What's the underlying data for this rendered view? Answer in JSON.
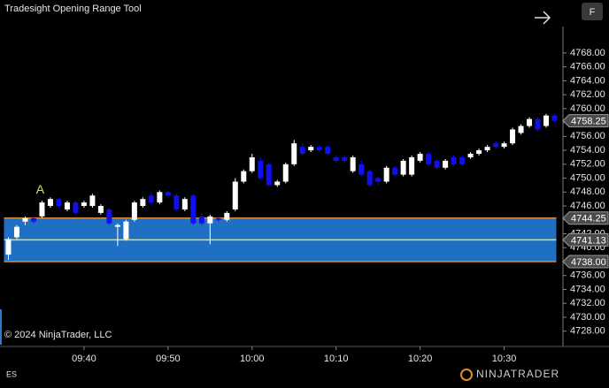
{
  "chart_data": {
    "type": "candlestick",
    "title": "Tradesight Opening Range Tool",
    "copyright": "© 2024 NinjaTrader, LLC",
    "instrument": "ES",
    "brand": "NINJATRADER",
    "button": "F",
    "up_color": "#ffffff",
    "down_color": "#1010ee",
    "x": [
      571,
      572,
      573,
      574,
      575,
      576,
      577,
      578,
      579,
      580,
      581,
      582,
      583,
      584,
      585,
      586,
      587,
      588,
      589,
      590,
      591,
      592,
      593,
      594,
      595,
      596,
      597,
      598,
      599,
      600,
      601,
      602,
      603,
      604,
      605,
      606,
      607,
      608,
      609,
      610,
      611,
      612,
      613,
      614,
      615,
      616,
      617,
      618,
      619,
      620,
      621,
      622,
      623,
      624,
      625,
      626,
      627,
      628,
      629,
      630,
      631,
      632,
      633,
      634,
      635,
      636
    ],
    "open": [
      4739,
      4741.5,
      4743.75,
      4744.25,
      4744.5,
      4746,
      4747,
      4745.5,
      4746.5,
      4746,
      4746,
      4745,
      4745.5,
      4743,
      4741.25,
      4744,
      4746,
      4747.5,
      4746.5,
      4748,
      4747.5,
      4745.5,
      4747.5,
      4744.5,
      4743.5,
      4744.25,
      4744,
      4745.5,
      4749.5,
      4751,
      4752.5,
      4752,
      4749,
      4749.5,
      4752,
      4754.5,
      4754,
      4754.5,
      4754.5,
      4753,
      4753,
      4751,
      4752,
      4751,
      4750,
      4749.5,
      4751.5,
      4750.5,
      4750.5,
      4752.5,
      4753.5,
      4752.5,
      4751.5,
      4753,
      4753,
      4753,
      4753.5,
      4754,
      4755,
      4754.5,
      4755,
      4756.5,
      4757.5,
      4758.5,
      4757.5,
      4759
    ],
    "high": [
      4741.5,
      4743.25,
      4744.5,
      4744.5,
      4746.75,
      4747.25,
      4747.25,
      4746.75,
      4746.75,
      4746.75,
      4747.75,
      4746.25,
      4745.75,
      4743.5,
      4744,
      4746.75,
      4747.25,
      4748,
      4748.25,
      4748.25,
      4747.75,
      4747.25,
      4747.75,
      4745,
      4744.75,
      4744.5,
      4745.25,
      4750,
      4751.25,
      4753.5,
      4753,
      4752.25,
      4749.75,
      4752.25,
      4755.5,
      4755,
      4754.75,
      4754.75,
      4754.75,
      4753.25,
      4753.25,
      4753.25,
      4752.5,
      4751.25,
      4750.25,
      4751.75,
      4751.75,
      4752.75,
      4753.25,
      4753.75,
      4753.75,
      4752.75,
      4752.75,
      4753.25,
      4753.25,
      4753.75,
      4754.25,
      4754.75,
      4755.25,
      4755.25,
      4757.25,
      4757.75,
      4758.75,
      4758.75,
      4759.25,
      4759.25
    ],
    "low": [
      4738.25,
      4741.25,
      4743.25,
      4743.5,
      4744.25,
      4745.75,
      4745.75,
      4745.25,
      4744.75,
      4745.75,
      4745.75,
      4744.75,
      4743.25,
      4740.25,
      4741,
      4743.75,
      4745.75,
      4746.25,
      4746.25,
      4747.25,
      4745.25,
      4745.25,
      4743.25,
      4743.25,
      4740.5,
      4743.75,
      4743.75,
      4745.25,
      4749.25,
      4750.75,
      4749.75,
      4748.75,
      4748.75,
      4749.25,
      4751.75,
      4753.25,
      4753.75,
      4753.75,
      4753.25,
      4752.25,
      4752.25,
      4750.75,
      4750.25,
      4748.75,
      4749,
      4749.25,
      4750.25,
      4750.25,
      4750.25,
      4752.25,
      4751.75,
      4751.25,
      4751.25,
      4751.75,
      4751.75,
      4752.75,
      4753.25,
      4753.75,
      4754.25,
      4754.25,
      4754.75,
      4756.25,
      4757.25,
      4756.75,
      4757.25,
      4758
    ],
    "close": [
      4741.25,
      4743,
      4744.25,
      4743.75,
      4746.5,
      4747,
      4746,
      4746.5,
      4745,
      4746.5,
      4747.5,
      4746,
      4743.5,
      4743.25,
      4743.75,
      4746.5,
      4747,
      4746.5,
      4748,
      4747.5,
      4745.5,
      4747,
      4743.5,
      4743.5,
      4744.5,
      4744,
      4745,
      4749.5,
      4751,
      4753,
      4750,
      4749,
      4749.5,
      4752,
      4755,
      4753.5,
      4754.5,
      4754,
      4753.5,
      4752.5,
      4752.5,
      4753,
      4750.5,
      4749,
      4749.5,
      4751.5,
      4750.5,
      4752.5,
      4753,
      4753.5,
      4752,
      4751.5,
      4752.5,
      4752,
      4752,
      4753.5,
      4754,
      4754.5,
      4754.5,
      4755,
      4757,
      4757.5,
      4758.5,
      4757,
      4759,
      4758.25
    ],
    "opening_range": {
      "high": 4744.25,
      "mid": 4741.13,
      "low": {
        "value": 4738,
        "label": "4738.00"
      },
      "fill": "#1f6fc4",
      "border": "#e08a2c",
      "mid_color": "#f0e040"
    },
    "last_price": 4758.25,
    "annotation": {
      "text": "A",
      "x": 575,
      "y": 4748,
      "color": "#d8e060"
    },
    "xlim": [
      570,
      637
    ],
    "xticks": [
      {
        "value": 580,
        "label": "09:40"
      },
      {
        "value": 590,
        "label": "09:50"
      },
      {
        "value": 600,
        "label": "10:00"
      },
      {
        "value": 610,
        "label": "10:10"
      },
      {
        "value": 620,
        "label": "10:20"
      },
      {
        "value": 630,
        "label": "10:30"
      }
    ],
    "ylim": [
      4725.8,
      4771.8
    ],
    "yticks": [
      {
        "value": 4728,
        "label": "4728.00"
      },
      {
        "value": 4730,
        "label": "4730.00"
      },
      {
        "value": 4732,
        "label": "4732.00"
      },
      {
        "value": 4734,
        "label": "4734.00"
      },
      {
        "value": 4736,
        "label": "4736.00"
      },
      {
        "value": 4738,
        "label": "4738.00"
      },
      {
        "value": 4740,
        "label": "4740.00"
      },
      {
        "value": 4742,
        "label": "4742.00"
      },
      {
        "value": 4744,
        "label": "4744.00"
      },
      {
        "value": 4746,
        "label": "4746.00"
      },
      {
        "value": 4748,
        "label": "4748.00"
      },
      {
        "value": 4750,
        "label": "4750.00"
      },
      {
        "value": 4752,
        "label": "4752.00"
      },
      {
        "value": 4754,
        "label": "4754.00"
      },
      {
        "value": 4756,
        "label": "4756.00"
      },
      {
        "value": 4758,
        "label": "4758.00"
      },
      {
        "value": 4760,
        "label": "4760.00"
      },
      {
        "value": 4762,
        "label": "4762.00"
      },
      {
        "value": 4764,
        "label": "4764.00"
      },
      {
        "value": 4766,
        "label": "4766.00"
      },
      {
        "value": 4768,
        "label": "4768.00"
      }
    ]
  }
}
